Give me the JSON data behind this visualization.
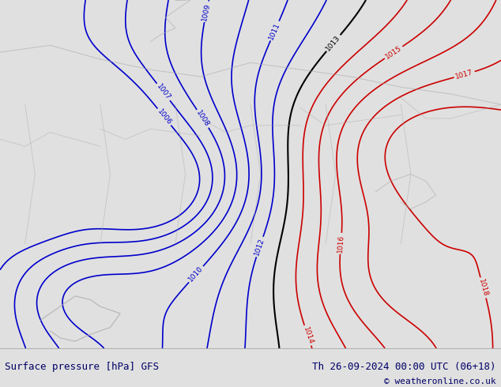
{
  "bg_color": "#aae090",
  "border_color": "#aaaaaa",
  "blue_contour_color": "#0000cc",
  "black_contour_color": "#000000",
  "red_contour_color": "#cc0000",
  "bottom_label_left": "Surface pressure [hPa] GFS",
  "bottom_label_right": "Th 26-09-2024 00:00 UTC (06+18)",
  "bottom_label_right2": "© weatheronline.co.uk",
  "label_color": "#000066",
  "figure_bg": "#e0e0e0",
  "bottom_strip_color": "#f0f0f0",
  "figsize": [
    6.34,
    4.9
  ],
  "dpi": 100
}
